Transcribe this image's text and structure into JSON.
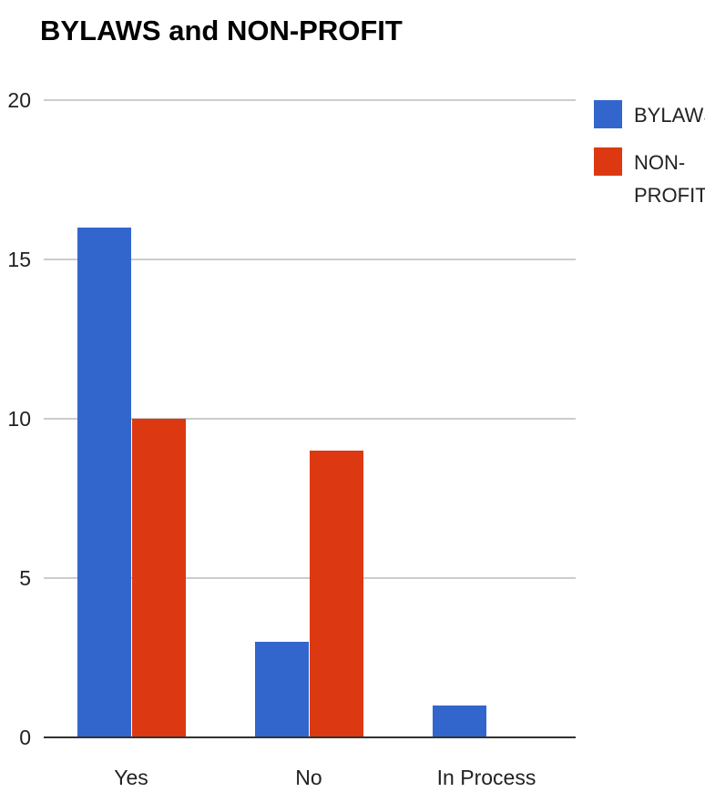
{
  "chart_data": {
    "type": "bar",
    "title": "BYLAWS and NON-PROFIT",
    "xlabel": "",
    "ylabel": "",
    "categories": [
      "Yes",
      "No",
      "In Process"
    ],
    "series": [
      {
        "name": "BYLAWS",
        "values": [
          16,
          3,
          1
        ],
        "color": "#3366cc"
      },
      {
        "name": "NON-PROFIT",
        "values": [
          10,
          9,
          0
        ],
        "color": "#dc3912"
      }
    ],
    "ylim": [
      0,
      20
    ],
    "yticks": [
      "0",
      "5",
      "10",
      "15",
      "20"
    ],
    "grid": true,
    "legend_position": "right"
  }
}
